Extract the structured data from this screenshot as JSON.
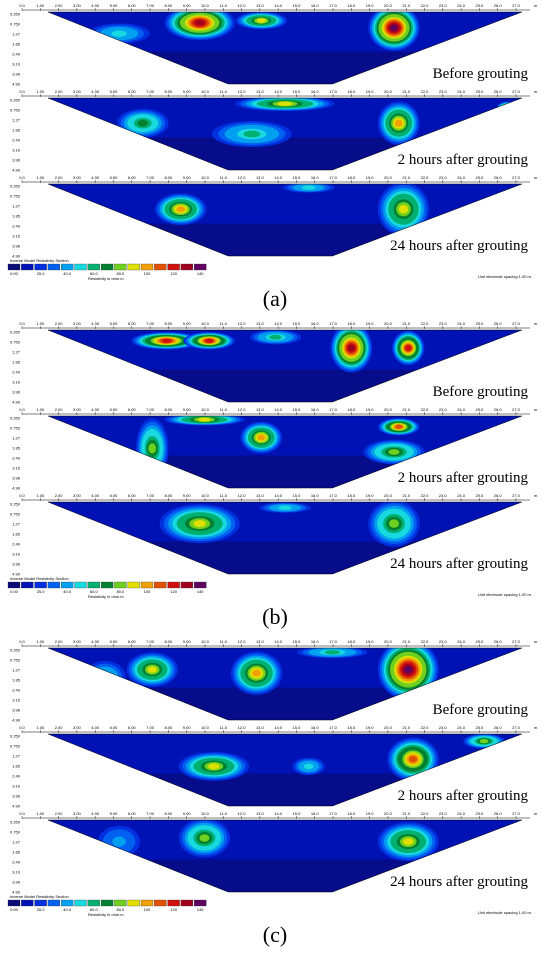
{
  "panels": [
    {
      "letter": "(a)",
      "sections": [
        {
          "caption": "Before grouting",
          "depths": [
            "0.250",
            "0.750",
            "1.27",
            "1.85",
            "2.49",
            "3.19",
            "3.96",
            "4.90"
          ]
        },
        {
          "caption": "2 hours after grouting",
          "depths": [
            "0.250",
            "0.750",
            "1.27",
            "1.85",
            "2.49",
            "3.19",
            "3.96",
            "4.90"
          ]
        },
        {
          "caption": "24 hours after grouting",
          "depths": [
            "0.250",
            "0.750",
            "1.27",
            "1.85",
            "2.49",
            "3.19",
            "3.96",
            "4.90"
          ]
        }
      ],
      "legend_title": "Inverse Model Resistivity Section",
      "legend_values": [
        "0.00",
        "25.0",
        "40.0",
        "60.0",
        "80.0",
        "100",
        "120",
        "140"
      ],
      "legend_unit": "Resistivity in ohm.m",
      "spacing": "Unit electrode spacing 1.00 m."
    },
    {
      "letter": "(b)",
      "sections": [
        {
          "caption": "Before grouting",
          "depths": [
            "0.250",
            "0.750",
            "1.27",
            "1.85",
            "2.49",
            "3.19",
            "3.96",
            "4.90"
          ]
        },
        {
          "caption": "2 hours after grouting",
          "depths": [
            "0.250",
            "0.750",
            "1.27",
            "1.85",
            "2.49",
            "3.19",
            "3.96",
            "4.90"
          ]
        },
        {
          "caption": "24 hours after grouting",
          "depths": [
            "0.250",
            "0.750",
            "1.27",
            "1.85",
            "2.49",
            "3.19",
            "3.96",
            "4.90"
          ]
        }
      ],
      "legend_title": "Inverse Model Resistivity Section",
      "legend_values": [
        "0.00",
        "25.0",
        "40.0",
        "60.0",
        "80.0",
        "100",
        "120",
        "140"
      ],
      "legend_unit": "Resistivity in ohm.m",
      "spacing": "Unit electrode spacing 1.00 m."
    },
    {
      "letter": "(c)",
      "sections": [
        {
          "caption": "Before grouting",
          "depths": [
            "0.250",
            "0.750",
            "1.27",
            "1.85",
            "2.49",
            "3.19",
            "3.96",
            "4.90"
          ]
        },
        {
          "caption": "2 hours after grouting",
          "depths": [
            "0.250",
            "0.750",
            "1.27",
            "1.85",
            "2.49",
            "3.19",
            "3.96",
            "4.90"
          ]
        },
        {
          "caption": "24 hours after grouting",
          "depths": [
            "0.250",
            "0.750",
            "1.27",
            "1.85",
            "2.49",
            "3.19",
            "3.96",
            "4.90"
          ]
        }
      ],
      "legend_title": "Inverse Model Resistivity Section",
      "legend_values": [
        "0.00",
        "25.0",
        "40.0",
        "60.0",
        "80.0",
        "100",
        "120",
        "140"
      ],
      "legend_unit": "Resistivity in ohm.m",
      "spacing": "Unit electrode spacing 1.00 m."
    }
  ],
  "x_ticks": [
    "0.0",
    "1.00",
    "2.00",
    "3.00",
    "4.00",
    "5.00",
    "6.00",
    "7.00",
    "8.00",
    "9.00",
    "10.0",
    "11.0",
    "12.0",
    "13.0",
    "14.0",
    "15.0",
    "16.0",
    "17.0",
    "18.0",
    "19.0",
    "20.0",
    "21.0",
    "22.0",
    "23.0",
    "24.0",
    "25.0",
    "26.0",
    "27.0"
  ],
  "x_unit": "m",
  "legend_colors": [
    "#0a0a78",
    "#0012b4",
    "#0030e0",
    "#0060f0",
    "#00a0f0",
    "#18d8e0",
    "#00b070",
    "#008030",
    "#70d020",
    "#e0e000",
    "#f0a000",
    "#e05000",
    "#d01010",
    "#a00020",
    "#600060"
  ]
}
